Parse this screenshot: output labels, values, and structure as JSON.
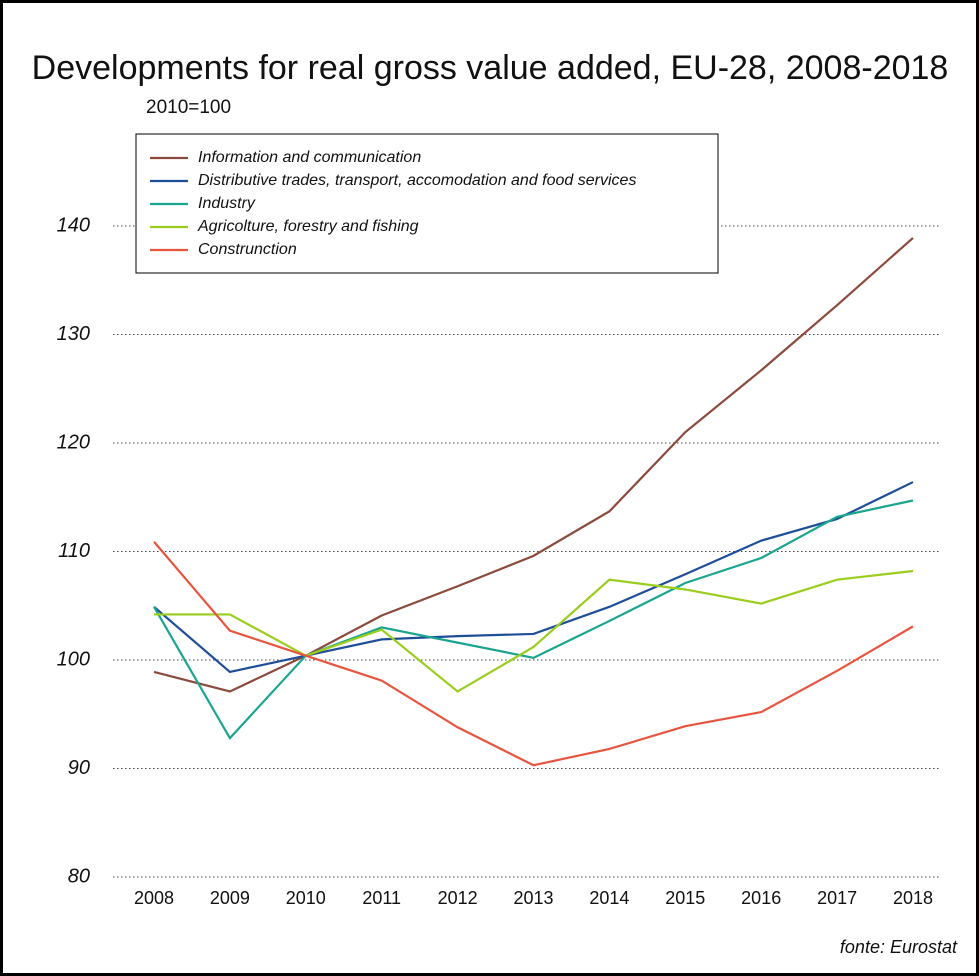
{
  "chart_data": {
    "type": "line",
    "title": "Developments for real gross value added, EU-28, 2008-2018",
    "subtitle": "2010=100",
    "source": "fonte: Eurostat",
    "categories": [
      "2008",
      "2009",
      "2010",
      "2011",
      "2012",
      "2013",
      "2014",
      "2015",
      "2016",
      "2017",
      "2018"
    ],
    "series": [
      {
        "name": "Information and communication",
        "color": "#8b4a3c",
        "values": [
          98.9,
          97.1,
          100.4,
          104.1,
          106.8,
          109.6,
          113.7,
          121,
          126.7,
          132.7,
          138.9
        ]
      },
      {
        "name": "Distributive trades, transport, accomodation and food services",
        "color": "#1f4e99",
        "values": [
          104.9,
          98.9,
          100.4,
          101.9,
          102.2,
          102.4,
          104.9,
          107.9,
          111,
          113,
          116.4
        ]
      },
      {
        "name": "Industry",
        "color": "#1aa58f",
        "values": [
          104.9,
          92.8,
          100.4,
          103.0,
          101.6,
          100.2,
          103.6,
          107.1,
          109.4,
          113.2,
          114.7
        ]
      },
      {
        "name": "Agricolture, forestry and fishing",
        "color": "#9acd1e",
        "values": [
          104.2,
          104.2,
          100.4,
          102.8,
          97.1,
          101.2,
          107.4,
          106.5,
          105.2,
          107.4,
          108.2
        ]
      },
      {
        "name": "Construnction",
        "color": "#e8553f",
        "values": [
          110.9,
          102.7,
          100.4,
          98.1,
          93.8,
          90.3,
          91.8,
          93.9,
          95.2,
          99,
          103.1
        ]
      }
    ],
    "ylim": [
      80,
      140
    ],
    "yticks": [
      80,
      90,
      100,
      110,
      120,
      130,
      140
    ],
    "grid": true,
    "legend": "top-left"
  }
}
